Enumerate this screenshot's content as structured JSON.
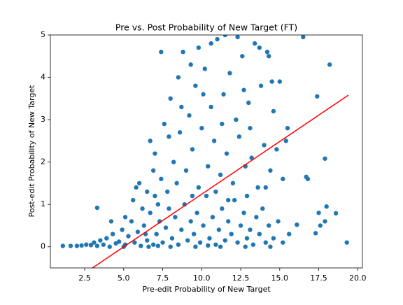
{
  "chart_data": {
    "type": "scatter",
    "title": "Pre vs. Post Probability of New Target (FT)",
    "xlabel": "Pre-edit Probability of New Target",
    "ylabel": "Post-edit Probability of New Target",
    "xlim": [
      0.3,
      20.3
    ],
    "ylim": [
      -0.5,
      5
    ],
    "xticks": [
      2.5,
      {
        "value": 5,
        "label": "5.0"
      },
      7.5,
      {
        "value": 10,
        "label": "10.0"
      },
      12.5,
      {
        "value": 15,
        "label": "15.0"
      },
      17.5,
      {
        "value": 20,
        "label": "20.0"
      }
    ],
    "yticks": [
      0,
      1,
      2,
      3,
      4,
      5
    ],
    "series": [
      {
        "type": "scatter",
        "color": "#1f77b4",
        "x": [
          1.1,
          1.6,
          2.0,
          2.3,
          2.6,
          2.9,
          3.1,
          3.3,
          3.5,
          3.7,
          3.9,
          4.1,
          4.3,
          4.5,
          4.7,
          4.9,
          5.1,
          5.3,
          5.5,
          5.7,
          5.9,
          6.1,
          6.3,
          6.5,
          6.7,
          6.9,
          7.1,
          7.3,
          7.5,
          7.7,
          7.9,
          8.1,
          8.3,
          8.5,
          8.7,
          8.9,
          9.1,
          9.3,
          9.5,
          9.7,
          9.9,
          10.1,
          10.3,
          10.5,
          10.7,
          10.9,
          11.1,
          11.3,
          11.5,
          11.7,
          11.9,
          12.1,
          12.3,
          12.5,
          12.7,
          12.9,
          13.1,
          13.3,
          13.5,
          13.7,
          13.9,
          14.1,
          14.3,
          14.6,
          14.9,
          15.2,
          15.6,
          16.1,
          16.8,
          17.3,
          17.6,
          17.9,
          18.6,
          19.3,
          18.0,
          17.5,
          3.3,
          4.2,
          5.1,
          5.6,
          6.0,
          6.2,
          6.5,
          6.9,
          7.0,
          7.2,
          7.4,
          7.6,
          7.8,
          8.0,
          8.2,
          8.4,
          8.6,
          8.8,
          9.0,
          9.2,
          9.4,
          9.6,
          9.8,
          10.0,
          10.2,
          10.4,
          10.6,
          10.8,
          11.0,
          11.2,
          11.4,
          11.6,
          11.8,
          12.0,
          12.2,
          12.4,
          12.6,
          12.8,
          13.0,
          13.2,
          13.4,
          13.6,
          13.8,
          14.0,
          14.2,
          14.4,
          14.6,
          14.8,
          15.0,
          15.2,
          15.5,
          16.5,
          18.2,
          17.4,
          17.9,
          16.7,
          7.4,
          8.5,
          9.8,
          10.6,
          11.5,
          12.3,
          13.7,
          14.3,
          6.7,
          7.9,
          9.4,
          10.9,
          11.7,
          12.9,
          14.1,
          15.4,
          5.8,
          7.0,
          8.7,
          9.3,
          10.1,
          11.3,
          12.7,
          13.1,
          14.5,
          6.4,
          8.0,
          9.6,
          11.2,
          12.8,
          14.4,
          5.0,
          6.6,
          7.2,
          10.4
        ],
        "values": [
          0.02,
          0.02,
          0.02,
          0.03,
          0.05,
          0.04,
          0.1,
          0.02,
          0.15,
          0.05,
          0.2,
          0.0,
          0.3,
          0.08,
          0.12,
          0.4,
          0.05,
          0.25,
          0.6,
          0.1,
          0.35,
          0.02,
          0.5,
          0.15,
          0.8,
          0.05,
          0.3,
          0.6,
          0.1,
          0.45,
          0.9,
          0.2,
          0.7,
          0.05,
          0.4,
          1.0,
          0.15,
          0.6,
          0.3,
          0.8,
          0.1,
          0.5,
          1.2,
          0.2,
          0.7,
          0.05,
          0.4,
          0.9,
          0.15,
          0.6,
          0.3,
          1.1,
          0.1,
          0.5,
          0.8,
          0.2,
          0.4,
          0.05,
          0.7,
          0.3,
          0.9,
          0.1,
          0.5,
          0.2,
          0.6,
          0.1,
          0.3,
          0.52,
          1.6,
          0.32,
          0.5,
          0.6,
          0.79,
          0.1,
          0.95,
          0.8,
          0.92,
          0.6,
          0.7,
          1.1,
          1.5,
          0.9,
          1.3,
          1.8,
          2.2,
          1.0,
          1.6,
          2.9,
          1.3,
          3.5,
          2.0,
          1.5,
          2.7,
          4.6,
          1.8,
          3.1,
          2.3,
          3.8,
          1.4,
          2.8,
          4.2,
          1.9,
          3.3,
          2.5,
          4.9,
          1.7,
          3.6,
          2.2,
          4.1,
          1.5,
          3.0,
          2.6,
          4.5,
          1.9,
          3.4,
          2.1,
          4.8,
          1.4,
          3.8,
          2.4,
          4.6,
          1.8,
          3.2,
          2.3,
          3.9,
          1.6,
          2.8,
          4.95,
          4.3,
          3.55,
          2.08,
          1.65,
          4.6,
          4.0,
          4.7,
          4.8,
          5.0,
          4.95,
          4.7,
          4.5,
          2.5,
          2.6,
          1.2,
          1.3,
          1.1,
          1.2,
          1.4,
          2.5,
          1.4,
          1.2,
          3.3,
          4.3,
          3.6,
          2.9,
          3.7,
          2.8,
          3.9,
          0.3,
          0.0,
          0.0,
          0.0,
          0.0,
          0.0,
          0.0,
          0.0,
          0.02,
          0.03
        ]
      },
      {
        "type": "line",
        "color": "#ff0000",
        "x": [
          3.0,
          19.4
        ],
        "values": [
          -0.5,
          3.58
        ]
      }
    ]
  }
}
